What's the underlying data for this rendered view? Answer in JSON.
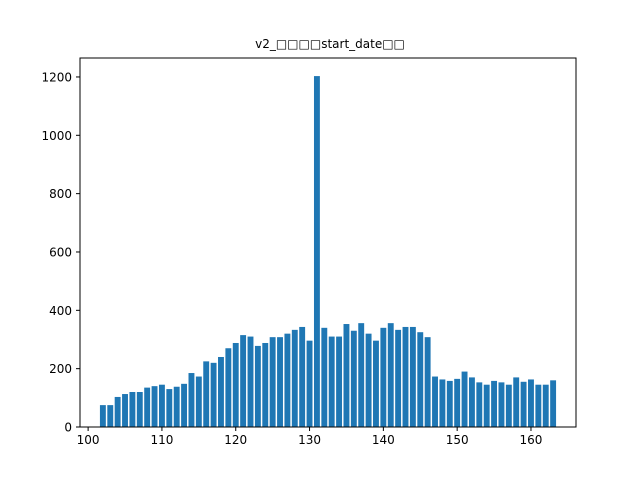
{
  "chart_data": {
    "type": "bar",
    "title": "v2_□□□□start_date□□",
    "xlabel": "",
    "ylabel": "",
    "xlim": [
      98.9,
      166.1
    ],
    "ylim": [
      0,
      1265
    ],
    "xticks": [
      100,
      110,
      120,
      130,
      140,
      150,
      160
    ],
    "yticks": [
      0,
      200,
      400,
      600,
      800,
      1000,
      1200
    ],
    "grid": false,
    "legend": "none",
    "bar_color": "#1f77b4",
    "x": [
      102,
      103,
      104,
      105,
      106,
      107,
      108,
      109,
      110,
      111,
      112,
      113,
      114,
      115,
      116,
      117,
      118,
      119,
      120,
      121,
      122,
      123,
      124,
      125,
      126,
      127,
      128,
      129,
      130,
      131,
      132,
      133,
      134,
      135,
      136,
      137,
      138,
      139,
      140,
      141,
      142,
      143,
      144,
      145,
      146,
      147,
      148,
      149,
      150,
      151,
      152,
      153,
      154,
      155,
      156,
      157,
      158,
      159,
      160,
      161,
      162,
      163
    ],
    "values": [
      75,
      75,
      103,
      113,
      120,
      120,
      135,
      140,
      145,
      130,
      138,
      148,
      185,
      173,
      225,
      220,
      240,
      270,
      288,
      315,
      310,
      278,
      288,
      308,
      308,
      320,
      333,
      343,
      296,
      1203,
      340,
      310,
      310,
      353,
      330,
      356,
      320,
      296,
      340,
      356,
      333,
      343,
      343,
      325,
      308,
      173,
      163,
      158,
      165,
      190,
      170,
      153,
      145,
      158,
      153,
      145,
      170,
      155,
      163,
      145,
      145,
      160
    ]
  }
}
